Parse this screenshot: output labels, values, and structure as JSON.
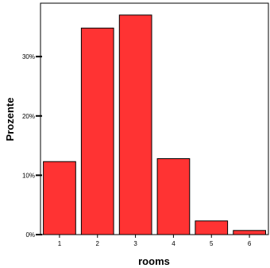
{
  "chart_data": {
    "type": "bar",
    "categories": [
      "1",
      "2",
      "3",
      "4",
      "5",
      "6"
    ],
    "values": [
      12.3,
      34.8,
      37.0,
      12.8,
      2.3,
      0.7
    ],
    "xlabel": "rooms",
    "ylabel": "Prozente",
    "ylim": [
      0,
      39
    ],
    "yticks": [
      0,
      10,
      20,
      30
    ],
    "ytick_labels": [
      "0%",
      "10%",
      "20%",
      "30%"
    ],
    "bar_color": "#ff3333",
    "bar_edge_color": "#000000",
    "grid": false
  }
}
